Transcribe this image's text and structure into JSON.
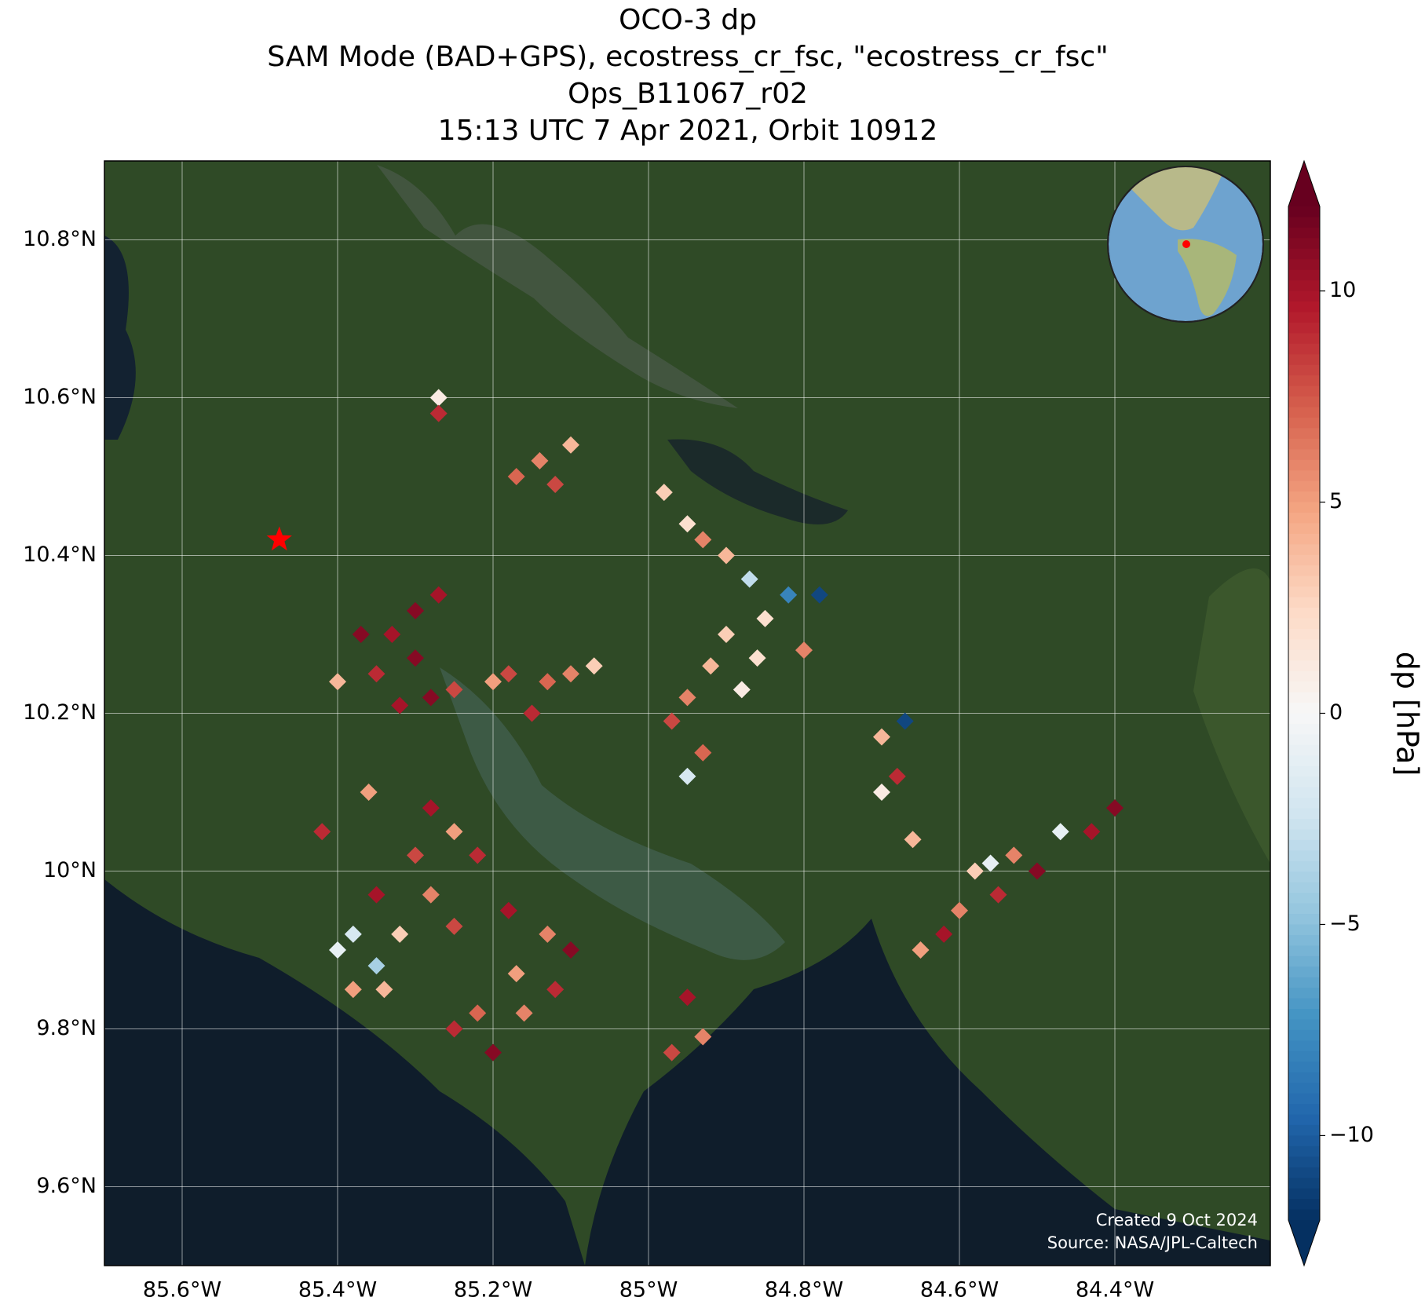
{
  "chart_data": {
    "type": "map",
    "title": [
      "OCO-3 dp",
      "SAM Mode (BAD+GPS), ecostress_cr_fsc, \"ecostress_cr_fsc\"",
      "Ops_B11067_r02",
      "15:13 UTC 7 Apr 2021, Orbit 10912"
    ],
    "xlim": [
      -85.7,
      -84.2
    ],
    "ylim": [
      9.5,
      10.9
    ],
    "xticks": [
      {
        "value": -85.6,
        "label": "85.6°W"
      },
      {
        "value": -85.4,
        "label": "85.4°W"
      },
      {
        "value": -85.2,
        "label": "85.2°W"
      },
      {
        "value": -85.0,
        "label": "85°W"
      },
      {
        "value": -84.8,
        "label": "84.8°W"
      },
      {
        "value": -84.6,
        "label": "84.6°W"
      },
      {
        "value": -84.4,
        "label": "84.4°W"
      }
    ],
    "yticks": [
      {
        "value": 9.6,
        "label": "9.6°N"
      },
      {
        "value": 9.8,
        "label": "9.8°N"
      },
      {
        "value": 10.0,
        "label": "10°N"
      },
      {
        "value": 10.2,
        "label": "10.2°N"
      },
      {
        "value": 10.4,
        "label": "10.4°N"
      },
      {
        "value": 10.6,
        "label": "10.6°N"
      },
      {
        "value": 10.8,
        "label": "10.8°N"
      }
    ],
    "grid": true,
    "colormap": "RdBu_r",
    "clim": [
      -12,
      12
    ],
    "cticks": [
      {
        "value": -10,
        "label": "−10"
      },
      {
        "value": -5,
        "label": "−5"
      },
      0,
      5,
      10
    ],
    "colorbar_label": "dp [hPa]",
    "site": {
      "lon": -85.475,
      "lat": 10.42,
      "color": "#ff0000"
    },
    "soundings": {
      "lon": [
        -85.37,
        -85.33,
        -85.3,
        -85.35,
        -85.4,
        -85.28,
        -85.32,
        -85.25,
        -85.3,
        -85.27,
        -85.18,
        -85.13,
        -85.15,
        -85.1,
        -85.2,
        -85.07,
        -85.27,
        -85.27,
        -85.14,
        -85.1,
        -85.12,
        -85.17,
        -84.98,
        -84.95,
        -84.93,
        -84.9,
        -84.9,
        -84.85,
        -84.92,
        -84.86,
        -84.95,
        -84.97,
        -84.82,
        -84.87,
        -84.78,
        -84.8,
        -84.88,
        -84.93,
        -84.95,
        -84.7,
        -84.68,
        -84.7,
        -84.67,
        -84.66,
        -85.28,
        -85.25,
        -85.3,
        -85.22,
        -85.35,
        -85.28,
        -85.32,
        -85.38,
        -85.35,
        -85.25,
        -85.4,
        -85.38,
        -85.34,
        -85.36,
        -85.42,
        -85.18,
        -85.13,
        -85.1,
        -85.17,
        -85.22,
        -85.16,
        -85.2,
        -85.25,
        -85.12,
        -84.97,
        -84.93,
        -84.95,
        -84.6,
        -84.55,
        -84.58,
        -84.53,
        -84.62,
        -84.65,
        -84.47,
        -84.43,
        -84.4,
        -84.5,
        -84.56
      ],
      "lat": [
        10.3,
        10.3,
        10.27,
        10.25,
        10.24,
        10.22,
        10.21,
        10.23,
        10.33,
        10.35,
        10.25,
        10.24,
        10.2,
        10.25,
        10.24,
        10.26,
        10.6,
        10.58,
        10.52,
        10.54,
        10.49,
        10.5,
        10.48,
        10.44,
        10.42,
        10.4,
        10.3,
        10.32,
        10.26,
        10.27,
        10.22,
        10.19,
        10.35,
        10.37,
        10.35,
        10.28,
        10.23,
        10.15,
        10.12,
        10.17,
        10.12,
        10.1,
        10.19,
        10.04,
        10.08,
        10.05,
        10.02,
        10.02,
        9.97,
        9.97,
        9.92,
        9.92,
        9.88,
        9.93,
        9.9,
        9.85,
        9.85,
        10.1,
        10.05,
        9.95,
        9.92,
        9.9,
        9.87,
        9.82,
        9.82,
        9.77,
        9.8,
        9.85,
        9.77,
        9.79,
        9.84,
        9.95,
        9.97,
        10.0,
        10.02,
        9.92,
        9.9,
        10.05,
        10.05,
        10.08,
        10.0,
        10.01
      ],
      "dp": [
        11,
        10,
        11,
        9,
        4,
        11,
        10,
        8,
        11,
        10,
        8,
        7,
        9,
        6,
        5,
        3,
        1,
        9,
        6,
        4,
        8,
        7,
        3,
        2,
        6,
        4,
        3,
        2,
        4,
        2,
        6,
        8,
        -8,
        -3,
        -11,
        6,
        1,
        7,
        -2,
        4,
        9,
        1,
        -11,
        4,
        10,
        5,
        8,
        9,
        10,
        6,
        3,
        -2,
        -4,
        8,
        -1,
        5,
        4,
        5,
        9,
        10,
        6,
        11,
        5,
        7,
        6,
        11,
        9,
        9,
        8,
        6,
        10,
        6,
        9,
        3,
        6,
        10,
        5,
        -1,
        10,
        11,
        11,
        -1
      ]
    },
    "footer": [
      "Created 9 Oct 2024",
      "Source: NASA/JPL-Caltech"
    ]
  }
}
